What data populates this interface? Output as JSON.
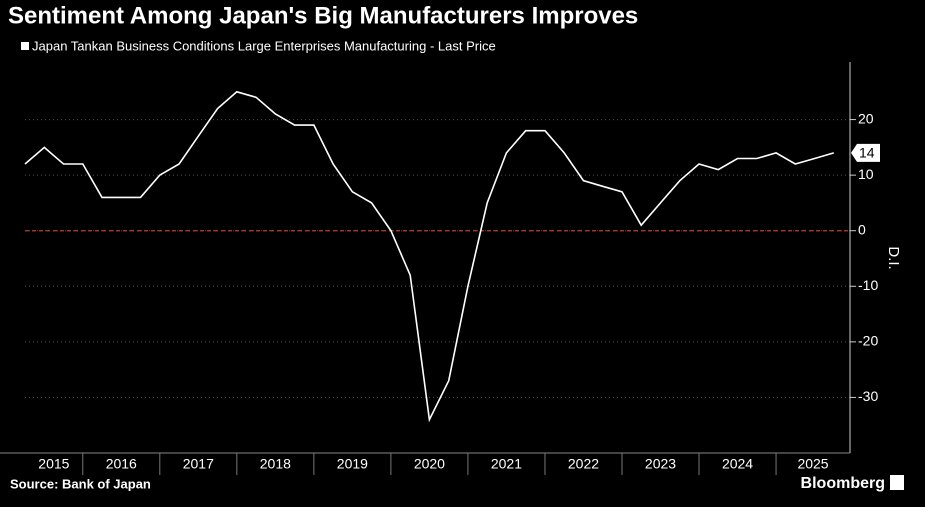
{
  "chart_data": {
    "type": "line",
    "title": "Sentiment Among Japan's Big Manufacturers Improves",
    "ylabel": "D.I.",
    "source": "Source: Bank of Japan",
    "brand": "Bloomberg",
    "x": [
      2015.25,
      2015.5,
      2015.75,
      2016.0,
      2016.25,
      2016.5,
      2016.75,
      2017.0,
      2017.25,
      2017.5,
      2017.75,
      2018.0,
      2018.25,
      2018.5,
      2018.75,
      2019.0,
      2019.25,
      2019.5,
      2019.75,
      2020.0,
      2020.25,
      2020.5,
      2020.75,
      2021.0,
      2021.25,
      2021.5,
      2021.75,
      2022.0,
      2022.25,
      2022.5,
      2022.75,
      2023.0,
      2023.25,
      2023.5,
      2023.75,
      2024.0,
      2024.25,
      2024.5,
      2024.75,
      2025.0,
      2025.25,
      2025.5,
      2025.75
    ],
    "series": [
      {
        "name": "Japan Tankan Business Conditions Large Enterprises Manufacturing - Last Price",
        "color": "#ffffff",
        "values": [
          12,
          15,
          12,
          12,
          6,
          6,
          6,
          10,
          12,
          17,
          22,
          25,
          24,
          21,
          19,
          19,
          12,
          7,
          5,
          0,
          -8,
          -34,
          -27,
          -10,
          5,
          14,
          18,
          18,
          14,
          9,
          8,
          7,
          1,
          5,
          9,
          12,
          11,
          13,
          13,
          14,
          12,
          13,
          14
        ]
      }
    ],
    "xlim": [
      2015.25,
      2025.96
    ],
    "xticks": [
      2015,
      2016,
      2017,
      2018,
      2019,
      2020,
      2021,
      2022,
      2023,
      2024,
      2025
    ],
    "ylim": [
      -40,
      30
    ],
    "yticks": [
      -30,
      -20,
      -10,
      0,
      10,
      20
    ],
    "grid": true,
    "reference_line": {
      "value": 0,
      "color": "#c0392b"
    }
  }
}
